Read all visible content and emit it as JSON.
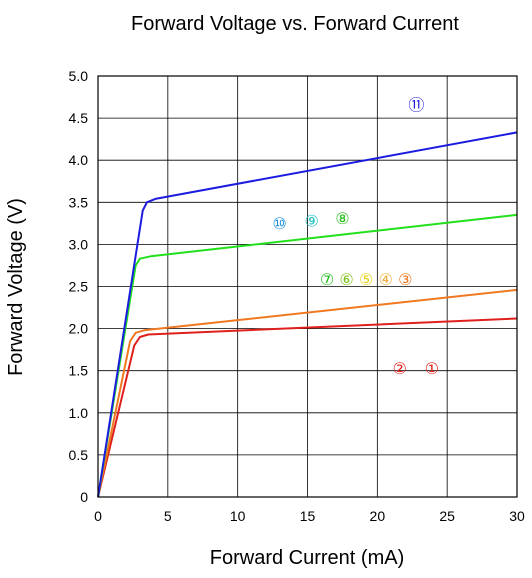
{
  "chart_data": {
    "type": "line",
    "title": "Forward Voltage vs. Forward Current",
    "xlabel": "Forward Current (mA)",
    "ylabel": "Forward Voltage (V)",
    "xlim": [
      0,
      30
    ],
    "ylim": [
      0,
      5.0
    ],
    "x_ticks": [
      "0",
      "5",
      "10",
      "15",
      "20",
      "25",
      "30"
    ],
    "y_ticks": [
      "0",
      "0.5",
      "1.0",
      "1.5",
      "2.0",
      "2.5",
      "3.0",
      "3.5",
      "4.0",
      "4.5",
      "5.0"
    ],
    "grid": true,
    "series": [
      {
        "color": "#e0201c",
        "x": [
          0,
          2.6,
          3.0,
          3.6,
          30
        ],
        "y": [
          0,
          1.8,
          1.9,
          1.93,
          2.12
        ],
        "markers": [
          "②",
          "①"
        ]
      },
      {
        "color": "#f07820",
        "x": [
          0,
          2.3,
          2.7,
          3.3,
          30
        ],
        "y": [
          0,
          1.85,
          1.95,
          1.98,
          2.46
        ],
        "markers": [
          "⑦",
          "⑥",
          "⑤",
          "④",
          "③"
        ]
      },
      {
        "color": "#22e01c",
        "x": [
          0,
          2.7,
          3.0,
          3.8,
          30
        ],
        "y": [
          0,
          2.75,
          2.83,
          2.86,
          3.35
        ],
        "markers": [
          "⑩",
          "⑨",
          "⑧"
        ]
      },
      {
        "color": "#1c1ce0",
        "x": [
          0,
          3.2,
          3.5,
          4.1,
          30
        ],
        "y": [
          0,
          3.4,
          3.5,
          3.54,
          4.33
        ],
        "markers": [
          "⑪"
        ]
      }
    ],
    "annotations": [
      {
        "text": "⑪",
        "color": "#1c1ce0",
        "x": 22.8,
        "y": 4.65
      },
      {
        "text": "⑩",
        "color": "#1c90e0",
        "x": 13.0,
        "y": 3.24
      },
      {
        "text": "⑨",
        "color": "#1cc0c0",
        "x": 15.3,
        "y": 3.27
      },
      {
        "text": "⑧",
        "color": "#2ac01c",
        "x": 17.5,
        "y": 3.3
      },
      {
        "text": "⑦",
        "color": "#22c01c",
        "x": 16.4,
        "y": 2.58
      },
      {
        "text": "⑥",
        "color": "#80c01c",
        "x": 17.8,
        "y": 2.58
      },
      {
        "text": "⑤",
        "color": "#e8d020",
        "x": 19.2,
        "y": 2.58
      },
      {
        "text": "④",
        "color": "#f0b040",
        "x": 20.6,
        "y": 2.58
      },
      {
        "text": "③",
        "color": "#f07820",
        "x": 22.0,
        "y": 2.58
      },
      {
        "text": "②",
        "color": "#e0201c",
        "x": 21.6,
        "y": 1.52
      },
      {
        "text": "①",
        "color": "#e0201c",
        "x": 23.9,
        "y": 1.52
      }
    ]
  }
}
